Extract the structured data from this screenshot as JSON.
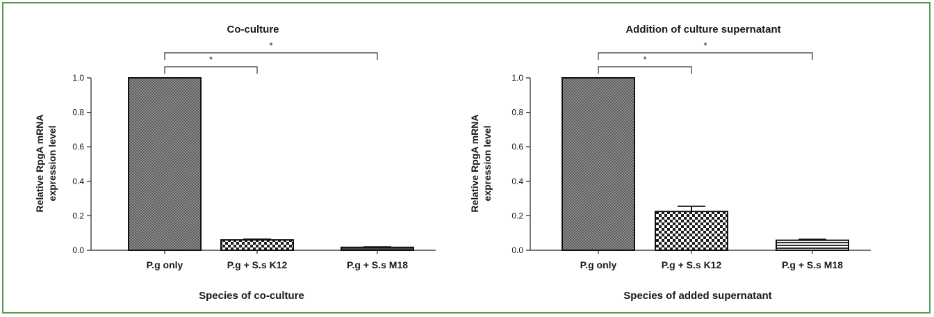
{
  "chart_data": [
    {
      "type": "bar",
      "title": "Co-culture",
      "xlabel": "Species of co-culture",
      "ylabel": [
        "Relative RpgA mRNA",
        "expression level"
      ],
      "categories": [
        "P.g only",
        "P.g + S.s K12",
        "P.g + S.s M18"
      ],
      "values": [
        1.0,
        0.06,
        0.017
      ],
      "errors": [
        0,
        0.004,
        0.002
      ],
      "ylim": [
        0,
        1.0
      ],
      "yticks": [
        "0.0",
        "0.2",
        "0.4",
        "0.6",
        "0.8",
        "1.0"
      ],
      "significance": [
        {
          "from": 0,
          "to": 1,
          "label": "*"
        },
        {
          "from": 0,
          "to": 2,
          "label": "*"
        }
      ],
      "patterns": [
        "dense-check",
        "checker",
        "solid-dark"
      ]
    },
    {
      "type": "bar",
      "title": "Addition of culture supernatant",
      "xlabel": "Species of added supernatant",
      "ylabel": [
        "Relative RpgA mRNA",
        "expression level"
      ],
      "categories": [
        "P.g only",
        "P.g + S.s K12",
        "P.g + S.s M18"
      ],
      "values": [
        1.0,
        0.225,
        0.058
      ],
      "errors": [
        0,
        0.03,
        0.005
      ],
      "ylim": [
        0,
        1.0
      ],
      "yticks": [
        "0.0",
        "0.2",
        "0.4",
        "0.6",
        "0.8",
        "1.0"
      ],
      "significance": [
        {
          "from": 0,
          "to": 1,
          "label": "*"
        },
        {
          "from": 0,
          "to": 2,
          "label": "*"
        }
      ],
      "patterns": [
        "dense-check",
        "checker",
        "hstripe"
      ]
    }
  ]
}
